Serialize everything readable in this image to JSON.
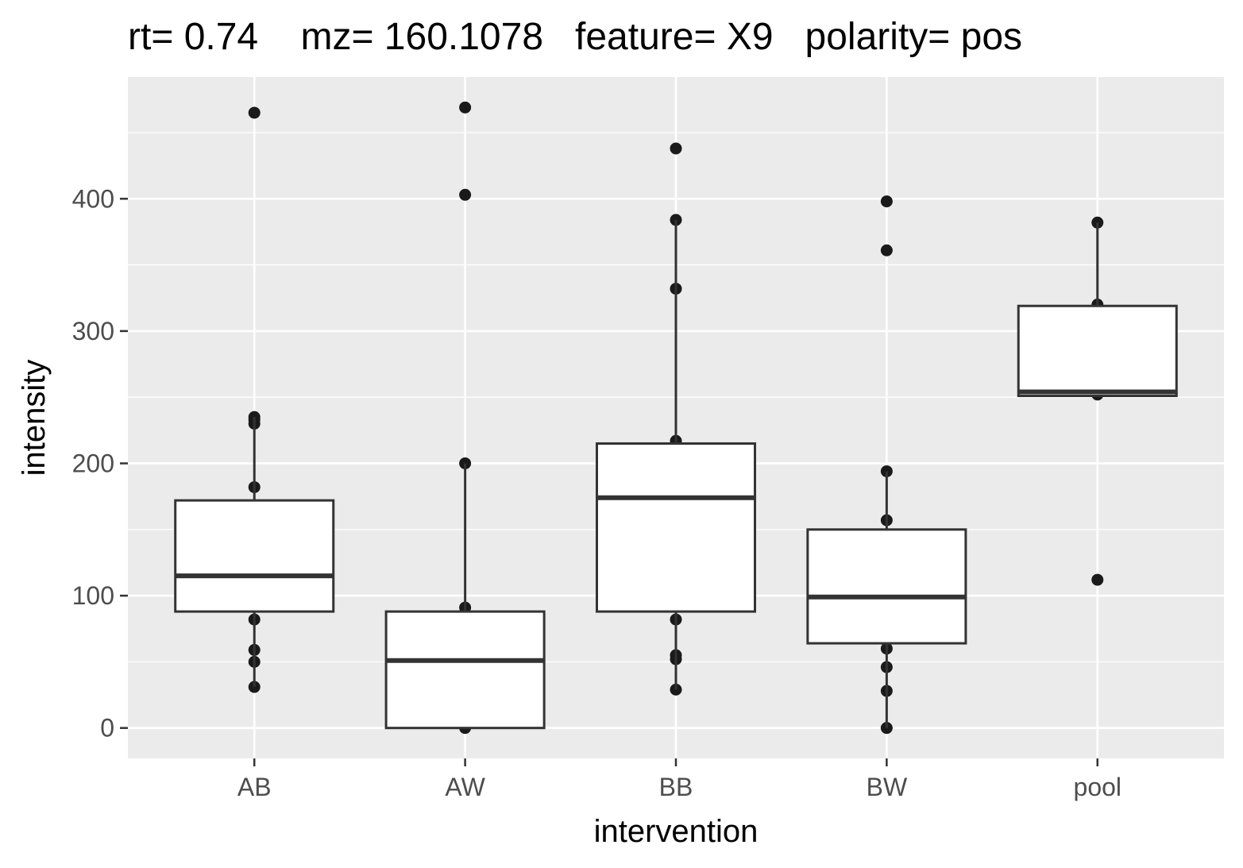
{
  "chart_data": {
    "type": "boxplot",
    "title": "rt= 0.74    mz= 160.1078   feature= X9   polarity= pos",
    "xlabel": "intervention",
    "ylabel": "intensity",
    "categories": [
      "AB",
      "AW",
      "BB",
      "BW",
      "pool"
    ],
    "ylim": [
      -23,
      492
    ],
    "yticks": [
      0,
      100,
      200,
      300,
      400
    ],
    "grid": true,
    "colors": {
      "panel": "#ebebeb",
      "grid_major": "#ffffff",
      "box_fill": "#ffffff",
      "box_line": "#333333",
      "point": "#1a1a1a"
    },
    "boxes": [
      {
        "category": "AB",
        "whisker_low": 31,
        "q1": 88,
        "median": 115,
        "q3": 172,
        "whisker_high": 235
      },
      {
        "category": "AW",
        "whisker_low": 0,
        "q1": 0,
        "median": 51,
        "q3": 88,
        "whisker_high": 200
      },
      {
        "category": "BB",
        "whisker_low": 29,
        "q1": 88,
        "median": 174,
        "q3": 215,
        "whisker_high": 384
      },
      {
        "category": "BW",
        "whisker_low": 0,
        "q1": 64,
        "median": 99,
        "q3": 150,
        "whisker_high": 194
      },
      {
        "category": "pool",
        "whisker_low": 251,
        "q1": 251,
        "median": 254,
        "q3": 319,
        "whisker_high": 382
      }
    ],
    "points": [
      {
        "category": "AB",
        "values": [
          465,
          235,
          233,
          230,
          182,
          82,
          59,
          50,
          31
        ]
      },
      {
        "category": "AW",
        "values": [
          469,
          403,
          200,
          91,
          0
        ]
      },
      {
        "category": "BB",
        "values": [
          438,
          384,
          332,
          217,
          82,
          55,
          52,
          29
        ]
      },
      {
        "category": "BW",
        "values": [
          398,
          361,
          194,
          157,
          60,
          46,
          28,
          0
        ]
      },
      {
        "category": "pool",
        "values": [
          382,
          320,
          252,
          112
        ]
      }
    ]
  }
}
